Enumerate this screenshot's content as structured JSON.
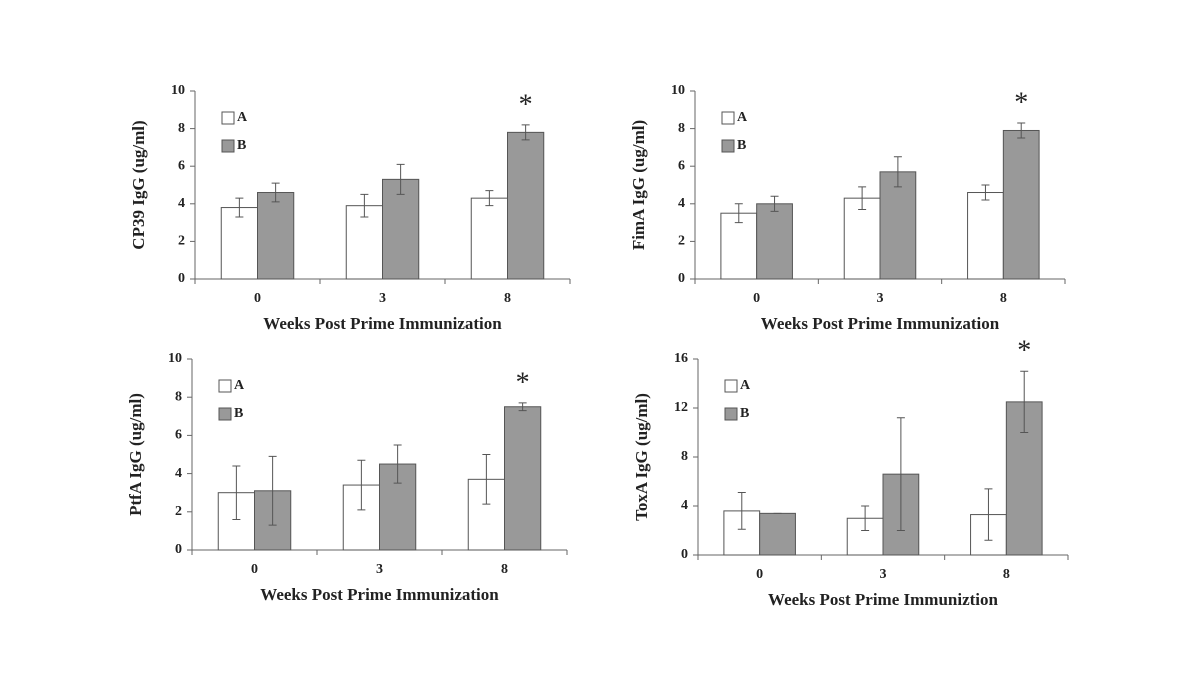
{
  "chart_data": [
    {
      "type": "bar",
      "ylabel": "CP39  IgG (ug/ml)",
      "xlabel": "Weeks Post Prime Immunization",
      "categories": [
        "0",
        "3",
        "8"
      ],
      "ylim": [
        0,
        10
      ],
      "yticks": [
        0,
        2,
        4,
        6,
        8,
        10
      ],
      "series": [
        {
          "name": "A",
          "color": "#ffffff",
          "values": [
            3.8,
            3.9,
            4.3
          ],
          "errors": [
            0.5,
            0.6,
            0.4
          ]
        },
        {
          "name": "B",
          "color": "#999999",
          "values": [
            4.6,
            5.3,
            7.8
          ],
          "errors": [
            0.5,
            0.8,
            0.4
          ]
        }
      ],
      "annotations": [
        {
          "text": "*",
          "x": "8"
        }
      ]
    },
    {
      "type": "bar",
      "ylabel": "FimA IgG (ug/ml)",
      "xlabel": "Weeks Post Prime Immunization",
      "categories": [
        "0",
        "3",
        "8"
      ],
      "ylim": [
        0,
        10
      ],
      "yticks": [
        0,
        2,
        4,
        6,
        8,
        10
      ],
      "series": [
        {
          "name": "A",
          "color": "#ffffff",
          "values": [
            3.5,
            4.3,
            4.6
          ],
          "errors": [
            0.5,
            0.6,
            0.4
          ]
        },
        {
          "name": "B",
          "color": "#999999",
          "values": [
            4.0,
            5.7,
            7.9
          ],
          "errors": [
            0.4,
            0.8,
            0.4
          ]
        }
      ],
      "annotations": [
        {
          "text": "*",
          "x": "8"
        }
      ]
    },
    {
      "type": "bar",
      "ylabel": "PtfA IgG (ug/ml)",
      "xlabel": "Weeks Post Prime Immunization",
      "categories": [
        "0",
        "3",
        "8"
      ],
      "ylim": [
        0,
        10
      ],
      "yticks": [
        0,
        2,
        4,
        6,
        8,
        10
      ],
      "series": [
        {
          "name": "A",
          "color": "#ffffff",
          "values": [
            3.0,
            3.4,
            3.7
          ],
          "errors": [
            1.4,
            1.3,
            1.3
          ]
        },
        {
          "name": "B",
          "color": "#999999",
          "values": [
            3.1,
            4.5,
            7.5
          ],
          "errors": [
            1.8,
            1.0,
            0.2
          ]
        }
      ],
      "annotations": [
        {
          "text": "*",
          "x": "8"
        }
      ]
    },
    {
      "type": "bar",
      "ylabel": "ToxA IgG (ug/ml)",
      "xlabel": "Weeks Post Prime Immuniztion",
      "categories": [
        "0",
        "3",
        "8"
      ],
      "ylim": [
        0,
        16
      ],
      "yticks": [
        0,
        4,
        8,
        12,
        16
      ],
      "series": [
        {
          "name": "A",
          "color": "#ffffff",
          "values": [
            3.6,
            3.0,
            3.3
          ],
          "errors": [
            1.5,
            1.0,
            2.1
          ]
        },
        {
          "name": "B",
          "color": "#999999",
          "values": [
            3.4,
            6.6,
            12.5
          ],
          "errors": [
            0,
            4.6,
            2.5
          ]
        }
      ],
      "annotations": [
        {
          "text": "*",
          "x": "8"
        }
      ]
    }
  ]
}
